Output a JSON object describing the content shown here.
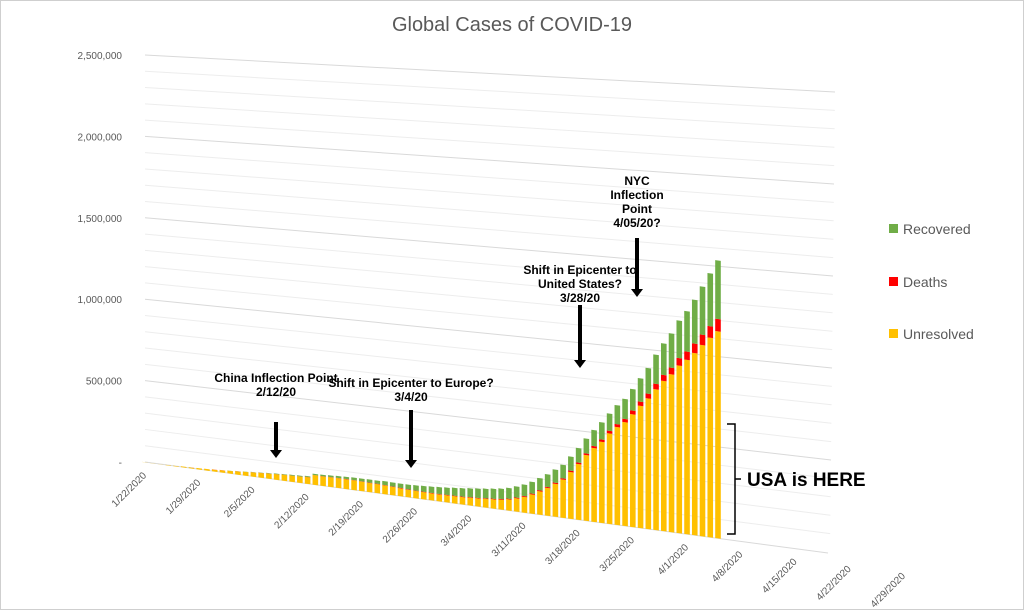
{
  "chart_data": {
    "type": "bar",
    "stacked": true,
    "perspective": "3d-skewed",
    "title": "Global Cases of COVID-19",
    "y_ticks": [
      "-",
      "500,000",
      "1,000,000",
      "1,500,000",
      "2,000,000",
      "2,500,000"
    ],
    "ylim": [
      0,
      2500000
    ],
    "x_ticks": [
      "1/22/2020",
      "1/29/2020",
      "2/5/2020",
      "2/12/2020",
      "2/19/2020",
      "2/26/2020",
      "3/4/2020",
      "3/11/2020",
      "3/18/2020",
      "3/25/2020",
      "4/1/2020",
      "4/8/2020",
      "4/15/2020",
      "4/22/2020",
      "4/29/2020"
    ],
    "x_start": "1/22/2020",
    "grid": true,
    "legend_position": "right",
    "colors": {
      "Recovered": "#70AD47",
      "Deaths": "#FF0000",
      "Unresolved": "#FFC000"
    },
    "series": [
      {
        "name": "Unresolved",
        "values": [
          600,
          900,
          1200,
          2000,
          2700,
          5500,
          5800,
          8000,
          9500,
          11500,
          14000,
          16700,
          19500,
          23000,
          26000,
          28800,
          31200,
          33600,
          35600,
          36800,
          38200,
          40300,
          57700,
          56500,
          57600,
          58300,
          57800,
          57500,
          56000,
          54500,
          53400,
          51500,
          49000,
          46500,
          44000,
          42700,
          42000,
          41200,
          40600,
          41000,
          42000,
          43000,
          45200,
          47100,
          50300,
          53500,
          57500,
          64900,
          76600,
          90800,
          111000,
          135000,
          160000,
          189000,
          219000,
          268000,
          319000,
          376000,
          422000,
          463000,
          516000,
          557000,
          590000,
          640000,
          693000,
          740000,
          797000,
          849000,
          891000,
          945000,
          982000,
          1025000,
          1074000,
          1120000,
          1160000
        ]
      },
      {
        "name": "Deaths",
        "values": [
          17,
          18,
          26,
          42,
          56,
          82,
          131,
          133,
          171,
          213,
          259,
          362,
          426,
          492,
          564,
          634,
          719,
          806,
          906,
          1013,
          1113,
          1118,
          1371,
          1523,
          1666,
          1770,
          1868,
          2007,
          2122,
          2247,
          2251,
          2458,
          2469,
          2629,
          2708,
          2770,
          2814,
          2872,
          2941,
          2996,
          3085,
          3160,
          3254,
          3348,
          3460,
          3558,
          3802,
          3988,
          4262,
          4615,
          4720,
          5404,
          5819,
          6440,
          7126,
          7905,
          8733,
          9867,
          11299,
          12973,
          14651,
          16505,
          18625,
          21181,
          23970,
          27198,
          30652,
          33925,
          37582,
          42107,
          46809,
          52983,
          58787,
          64606,
          69374
        ]
      },
      {
        "name": "Recovered",
        "values": [
          28,
          30,
          36,
          39,
          52,
          61,
          107,
          126,
          143,
          222,
          284,
          472,
          623,
          852,
          1124,
          1487,
          2011,
          2616,
          3244,
          3946,
          4683,
          5150,
          6295,
          8058,
          9395,
          10865,
          12583,
          14352,
          16121,
          18177,
          18890,
          22886,
          23394,
          25227,
          27905,
          30384,
          33277,
          36711,
          39782,
          42716,
          45602,
          48228,
          51170,
          53796,
          55865,
          58358,
          60694,
          62494,
          64404,
          67003,
          68324,
          70251,
          72624,
          76034,
          78088,
          80840,
          83207,
          84854,
          91500,
          97882,
          98351,
          108000,
          114000,
          122000,
          132000,
          145000,
          165000,
          178000,
          193000,
          212000,
          227000,
          246000,
          270000,
          297000,
          328000
        ]
      }
    ],
    "annotations": [
      {
        "lines": [
          "China Inflection Point",
          "2/12/20"
        ],
        "date": "2/12/2020"
      },
      {
        "lines": [
          "Shift in Epicenter to Europe?",
          "3/4/20"
        ],
        "date": "3/4/2020"
      },
      {
        "lines": [
          "Shift in Epicenter to",
          "United States?",
          "3/28/20"
        ],
        "date": "3/28/2020"
      },
      {
        "lines": [
          "NYC",
          "Inflection",
          "Point",
          "4/05/20?"
        ],
        "date": "4/5/2020"
      }
    ],
    "callout": "USA is HERE"
  }
}
